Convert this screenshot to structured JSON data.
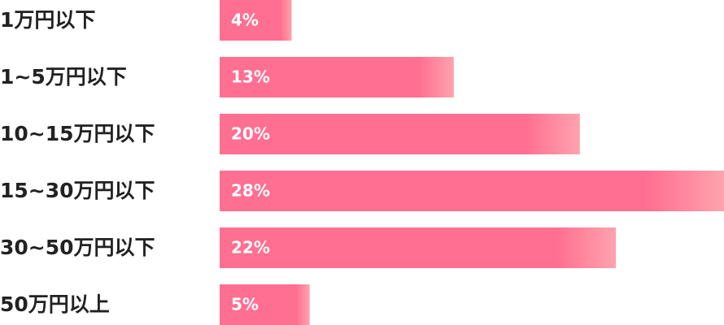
{
  "chart_data": {
    "type": "bar",
    "orientation": "horizontal",
    "categories": [
      "1万円以下",
      "1~5万円以下",
      "10~15万円以下",
      "15~30万円以下",
      "30~50万円以下",
      "50万円以上"
    ],
    "values": [
      4,
      13,
      20,
      28,
      22,
      5
    ],
    "value_labels": [
      "4%",
      "13%",
      "20%",
      "28%",
      "22%",
      "5%"
    ],
    "color": "#ff6f91"
  }
}
